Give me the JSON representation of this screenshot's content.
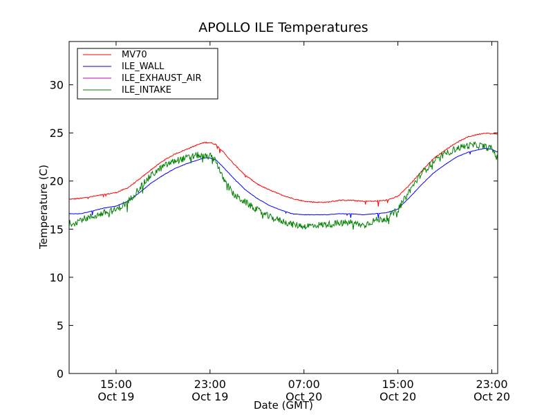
{
  "chart_data": {
    "type": "line",
    "title": "APOLLO ILE Temperatures",
    "xlabel": "Date (GMT)",
    "ylabel": "Temperature (C)",
    "xlim": [
      11,
      47.5
    ],
    "ylim": [
      0,
      34.5
    ],
    "yticks": [
      0,
      5,
      10,
      15,
      20,
      25,
      30
    ],
    "xticks": [
      {
        "hour": 15,
        "time": "15:00",
        "date": "Oct 19"
      },
      {
        "hour": 23,
        "time": "23:00",
        "date": "Oct 19"
      },
      {
        "hour": 31,
        "time": "07:00",
        "date": "Oct 20"
      },
      {
        "hour": 39,
        "time": "15:00",
        "date": "Oct 20"
      },
      {
        "hour": 47,
        "time": "23:00",
        "date": "Oct 20"
      }
    ],
    "legend_position": "top-left",
    "x_units": "hours since Oct 19 00:00 GMT",
    "series": [
      {
        "name": "MV70",
        "color": "#ff0000",
        "x": [
          11,
          12,
          13,
          14,
          15,
          16,
          17,
          18,
          19,
          20,
          21,
          22,
          22.5,
          23,
          23.5,
          24,
          25,
          26,
          27,
          28,
          29,
          30,
          31,
          32,
          33,
          34,
          35,
          36,
          37,
          38,
          39,
          40,
          41,
          42,
          43,
          44,
          45,
          46,
          46.5,
          47,
          47.5
        ],
        "y": [
          18.1,
          18.2,
          18.4,
          18.6,
          18.8,
          19.3,
          20.2,
          21.2,
          22.1,
          22.8,
          23.3,
          23.8,
          24.0,
          24.0,
          23.8,
          23.2,
          21.8,
          20.6,
          19.7,
          19.1,
          18.6,
          18.2,
          17.9,
          17.8,
          17.8,
          18.0,
          18.0,
          17.9,
          17.9,
          18.0,
          18.4,
          19.6,
          21.0,
          22.3,
          23.2,
          24.0,
          24.6,
          24.9,
          25.0,
          24.9,
          24.9
        ]
      },
      {
        "name": "ILE_WALL",
        "color": "#0000ff",
        "x": [
          11,
          12,
          13,
          14,
          15,
          16,
          17,
          18,
          19,
          20,
          21,
          22,
          22.5,
          23,
          23.5,
          24,
          25,
          26,
          27,
          28,
          29,
          30,
          31,
          32,
          33,
          34,
          35,
          36,
          37,
          38,
          39,
          40,
          41,
          42,
          43,
          44,
          45,
          46,
          46.5,
          47,
          47.5
        ],
        "y": [
          16.6,
          16.6,
          16.9,
          17.2,
          17.4,
          17.9,
          18.8,
          19.8,
          20.6,
          21.3,
          21.8,
          22.2,
          22.4,
          22.4,
          22.2,
          21.6,
          20.3,
          19.1,
          18.2,
          17.5,
          17.0,
          16.6,
          16.5,
          16.5,
          16.5,
          16.6,
          16.6,
          16.5,
          16.6,
          16.7,
          17.1,
          18.3,
          19.6,
          20.8,
          21.7,
          22.5,
          23.0,
          23.3,
          23.4,
          23.3,
          23.0
        ]
      },
      {
        "name": "ILE_EXHAUST_AIR",
        "color": "#bf00bf",
        "x": [],
        "y": []
      },
      {
        "name": "ILE_INTAKE",
        "color": "#008000",
        "x": [
          11,
          11.5,
          12,
          13,
          14,
          15,
          16,
          17,
          18,
          19,
          20,
          21,
          22,
          22.5,
          23,
          23.5,
          24,
          25,
          26,
          27,
          28,
          29,
          30,
          31,
          32,
          33,
          34,
          35,
          36,
          37,
          38,
          39,
          40,
          41,
          42,
          43,
          44,
          45,
          46,
          46.5,
          47,
          47.5
        ],
        "y": [
          15.6,
          15.7,
          16.0,
          16.3,
          16.7,
          17.0,
          17.8,
          19.3,
          20.6,
          21.5,
          22.1,
          22.4,
          22.7,
          22.5,
          22.6,
          22.2,
          20.5,
          18.6,
          17.8,
          17.0,
          16.3,
          15.9,
          15.5,
          15.3,
          15.4,
          15.5,
          15.6,
          15.7,
          15.4,
          15.9,
          16.1,
          17.0,
          19.0,
          20.8,
          22.0,
          22.8,
          23.4,
          23.7,
          23.7,
          23.5,
          23.4,
          22.3
        ]
      }
    ]
  }
}
